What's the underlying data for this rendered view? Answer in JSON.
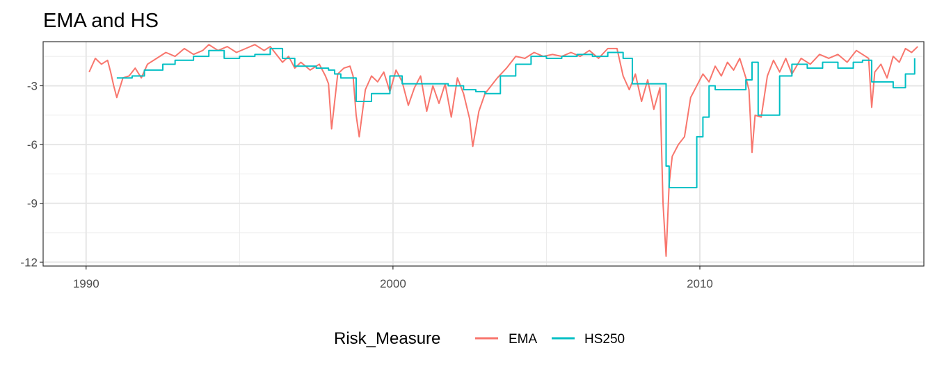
{
  "chart_data": {
    "type": "line",
    "title": "EMA and HS",
    "xlabel": "",
    "ylabel": "",
    "xlim": [
      1988.6,
      2017.3
    ],
    "ylim": [
      -12.2,
      -0.75
    ],
    "x_ticks": [
      1990,
      2000,
      2010
    ],
    "x_tick_labels": [
      "1990",
      "2000",
      "2010"
    ],
    "y_ticks": [
      -3,
      -6,
      -9,
      -12
    ],
    "y_tick_labels": [
      "-3",
      "-6",
      "-9",
      "-12"
    ],
    "grid": true,
    "legend": {
      "title": "Risk_Measure",
      "position": "bottom"
    },
    "series": [
      {
        "name": "EMA",
        "color": "#F8766D",
        "x": [
          1990.1,
          1990.3,
          1990.5,
          1990.7,
          1990.8,
          1990.9,
          1991.0,
          1991.2,
          1991.4,
          1991.6,
          1991.8,
          1992.0,
          1992.3,
          1992.6,
          1992.9,
          1993.2,
          1993.5,
          1993.8,
          1994.0,
          1994.3,
          1994.6,
          1994.9,
          1995.2,
          1995.5,
          1995.8,
          1996.0,
          1996.2,
          1996.4,
          1996.6,
          1996.8,
          1997.0,
          1997.3,
          1997.6,
          1997.8,
          1997.9,
          1998.0,
          1998.2,
          1998.4,
          1998.6,
          1998.7,
          1998.8,
          1998.9,
          1999.1,
          1999.3,
          1999.5,
          1999.7,
          1999.9,
          2000.1,
          2000.3,
          2000.5,
          2000.7,
          2000.9,
          2001.1,
          2001.3,
          2001.5,
          2001.7,
          2001.9,
          2002.1,
          2002.3,
          2002.5,
          2002.6,
          2002.8,
          2003.0,
          2003.2,
          2003.4,
          2003.7,
          2004.0,
          2004.3,
          2004.6,
          2004.9,
          2005.2,
          2005.5,
          2005.8,
          2006.1,
          2006.4,
          2006.7,
          2007.0,
          2007.3,
          2007.5,
          2007.7,
          2007.9,
          2008.1,
          2008.3,
          2008.5,
          2008.7,
          2008.8,
          2008.9,
          2009.0,
          2009.1,
          2009.3,
          2009.5,
          2009.7,
          2009.9,
          2010.1,
          2010.3,
          2010.5,
          2010.7,
          2010.9,
          2011.1,
          2011.3,
          2011.5,
          2011.6,
          2011.7,
          2011.8,
          2012.0,
          2012.2,
          2012.4,
          2012.6,
          2012.8,
          2013.0,
          2013.3,
          2013.6,
          2013.9,
          2014.2,
          2014.5,
          2014.8,
          2015.1,
          2015.3,
          2015.5,
          2015.6,
          2015.7,
          2015.9,
          2016.1,
          2016.3,
          2016.5,
          2016.7,
          2016.9,
          2017.1
        ],
        "values": [
          -2.3,
          -1.6,
          -1.9,
          -1.7,
          -2.3,
          -3.0,
          -3.6,
          -2.6,
          -2.5,
          -2.1,
          -2.6,
          -1.9,
          -1.6,
          -1.3,
          -1.5,
          -1.1,
          -1.4,
          -1.2,
          -0.9,
          -1.2,
          -1.0,
          -1.3,
          -1.1,
          -0.9,
          -1.2,
          -1.0,
          -1.4,
          -1.8,
          -1.5,
          -2.1,
          -1.8,
          -2.2,
          -1.9,
          -2.5,
          -2.9,
          -5.2,
          -2.4,
          -2.1,
          -2.0,
          -2.5,
          -4.5,
          -5.6,
          -3.2,
          -2.5,
          -2.8,
          -2.3,
          -3.3,
          -2.2,
          -2.8,
          -4.0,
          -3.1,
          -2.5,
          -4.3,
          -3.0,
          -3.9,
          -2.9,
          -4.6,
          -2.6,
          -3.4,
          -4.7,
          -6.1,
          -4.3,
          -3.4,
          -3.0,
          -2.6,
          -2.1,
          -1.5,
          -1.6,
          -1.3,
          -1.5,
          -1.4,
          -1.5,
          -1.3,
          -1.5,
          -1.2,
          -1.6,
          -1.1,
          -1.1,
          -2.5,
          -3.2,
          -2.4,
          -3.8,
          -2.7,
          -4.2,
          -3.1,
          -9.0,
          -11.7,
          -8.0,
          -6.6,
          -6.0,
          -5.6,
          -3.6,
          -3.0,
          -2.4,
          -2.8,
          -2.0,
          -2.5,
          -1.8,
          -2.2,
          -1.6,
          -2.6,
          -3.2,
          -6.4,
          -4.5,
          -4.6,
          -2.5,
          -1.7,
          -2.3,
          -1.6,
          -2.4,
          -1.6,
          -1.9,
          -1.4,
          -1.6,
          -1.4,
          -1.8,
          -1.2,
          -1.4,
          -1.6,
          -4.1,
          -2.3,
          -1.9,
          -2.6,
          -1.5,
          -1.8,
          -1.1,
          -1.3,
          -1.0
        ],
        "_note_": ""
      },
      {
        "name": "HS250",
        "color": "#00BFC4",
        "x": [
          1991.0,
          1991.5,
          1991.9,
          1992.5,
          1992.9,
          1993.5,
          1994.0,
          1994.5,
          1995.0,
          1995.5,
          1996.0,
          1996.4,
          1996.8,
          1997.5,
          1997.9,
          1998.1,
          1998.3,
          1998.8,
          1999.3,
          1999.9,
          2000.3,
          2000.8,
          2001.3,
          2001.8,
          2002.3,
          2002.7,
          2003.0,
          2003.5,
          2004.0,
          2004.5,
          2005.0,
          2005.5,
          2006.0,
          2006.5,
          2007.0,
          2007.5,
          2007.8,
          2008.5,
          2008.9,
          2009.0,
          2009.3,
          2009.7,
          2009.9,
          2010.1,
          2010.3,
          2010.5,
          2011.0,
          2011.5,
          2011.7,
          2011.9,
          2012.3,
          2012.6,
          2013.0,
          2013.5,
          2014.0,
          2014.5,
          2015.0,
          2015.3,
          2015.6,
          2016.0,
          2016.3,
          2016.7,
          2017.0
        ],
        "values": [
          -2.6,
          -2.5,
          -2.2,
          -1.9,
          -1.7,
          -1.5,
          -1.2,
          -1.6,
          -1.5,
          -1.4,
          -1.1,
          -1.6,
          -2.0,
          -2.1,
          -2.2,
          -2.4,
          -2.6,
          -3.8,
          -3.4,
          -2.5,
          -2.9,
          -2.9,
          -2.9,
          -3.0,
          -3.2,
          -3.3,
          -3.4,
          -2.5,
          -1.9,
          -1.5,
          -1.6,
          -1.5,
          -1.4,
          -1.5,
          -1.3,
          -1.6,
          -2.9,
          -2.9,
          -7.1,
          -8.2,
          -8.2,
          -8.2,
          -5.6,
          -4.6,
          -3.0,
          -3.2,
          -3.2,
          -2.7,
          -1.8,
          -4.5,
          -4.5,
          -2.5,
          -1.9,
          -2.1,
          -1.8,
          -2.1,
          -1.8,
          -1.7,
          -2.8,
          -2.8,
          -3.1,
          -2.4,
          -1.6
        ],
        "_note_": ""
      }
    ]
  }
}
